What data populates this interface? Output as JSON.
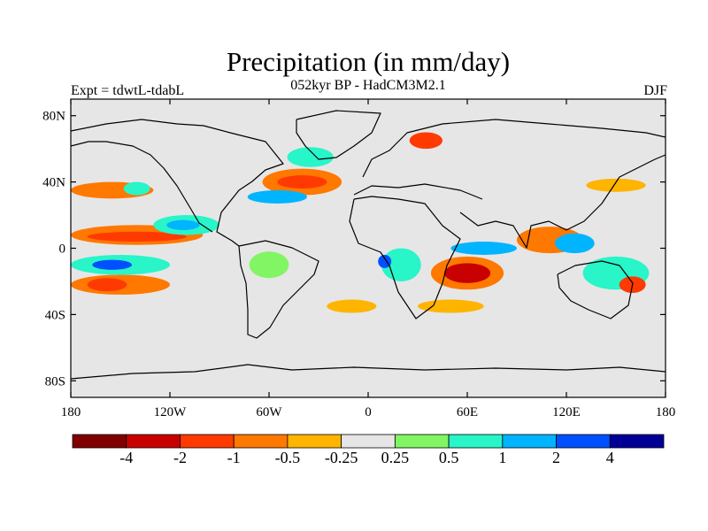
{
  "title": "Precipitation (in mm/day)",
  "subtitle": "052kyr BP - HadCM3M2.1",
  "left_label": "Expt = tdwtL-tdabL",
  "right_label": "DJF",
  "map": {
    "projection": "cylindrical equidistant",
    "lon_range": [
      -180,
      180
    ],
    "lat_range": [
      -90,
      90
    ],
    "lat_ticks": [
      {
        "value": 80,
        "label": "80N"
      },
      {
        "value": 40,
        "label": "40N"
      },
      {
        "value": 0,
        "label": "0"
      },
      {
        "value": -40,
        "label": "40S"
      },
      {
        "value": -80,
        "label": "80S"
      }
    ],
    "lon_ticks": [
      {
        "value": -180,
        "label": "180"
      },
      {
        "value": -120,
        "label": "120W"
      },
      {
        "value": -60,
        "label": "60W"
      },
      {
        "value": 0,
        "label": "0"
      },
      {
        "value": 60,
        "label": "60E"
      },
      {
        "value": 120,
        "label": "120E"
      },
      {
        "value": 180,
        "label": "180"
      }
    ],
    "background_color": "#e6e6e6"
  },
  "colorbar": {
    "colors": [
      "#800000",
      "#c80000",
      "#ff3a00",
      "#ff7800",
      "#ffb400",
      "#e6e6e6",
      "#82f564",
      "#28f5c8",
      "#00b4ff",
      "#0050ff",
      "#000096"
    ],
    "labels": [
      "-4",
      "-2",
      "-1",
      "-0.5",
      "-0.25",
      "0.25",
      "0.5",
      "1",
      "2",
      "4"
    ]
  },
  "anomaly_regions": [
    {
      "lon": 35,
      "lat": 65,
      "rx": 10,
      "ry": 5,
      "color": "#ff3a00"
    },
    {
      "lon": -35,
      "lat": 55,
      "rx": 14,
      "ry": 6,
      "color": "#28f5c8"
    },
    {
      "lon": -40,
      "lat": 40,
      "rx": 24,
      "ry": 8,
      "color": "#ff7800"
    },
    {
      "lon": -40,
      "lat": 40,
      "rx": 15,
      "ry": 4,
      "color": "#ff3a00"
    },
    {
      "lon": -55,
      "lat": 31,
      "rx": 18,
      "ry": 4,
      "color": "#00b4ff"
    },
    {
      "lon": -155,
      "lat": 35,
      "rx": 25,
      "ry": 5,
      "color": "#ff7800"
    },
    {
      "lon": -140,
      "lat": 36,
      "rx": 8,
      "ry": 4,
      "color": "#28f5c8"
    },
    {
      "lon": -140,
      "lat": 8,
      "rx": 40,
      "ry": 6,
      "color": "#ff7800"
    },
    {
      "lon": -140,
      "lat": 7,
      "rx": 30,
      "ry": 3,
      "color": "#ff3a00"
    },
    {
      "lon": -110,
      "lat": 14,
      "rx": 20,
      "ry": 6,
      "color": "#28f5c8"
    },
    {
      "lon": -112,
      "lat": 14,
      "rx": 10,
      "ry": 3,
      "color": "#00b4ff"
    },
    {
      "lon": -150,
      "lat": -10,
      "rx": 30,
      "ry": 6,
      "color": "#28f5c8"
    },
    {
      "lon": -155,
      "lat": -10,
      "rx": 12,
      "ry": 3,
      "color": "#0050ff"
    },
    {
      "lon": -150,
      "lat": -22,
      "rx": 30,
      "ry": 6,
      "color": "#ff7800"
    },
    {
      "lon": -158,
      "lat": -22,
      "rx": 12,
      "ry": 4,
      "color": "#ff3a00"
    },
    {
      "lon": -60,
      "lat": -10,
      "rx": 12,
      "ry": 8,
      "color": "#82f564"
    },
    {
      "lon": 20,
      "lat": -10,
      "rx": 12,
      "ry": 10,
      "color": "#28f5c8"
    },
    {
      "lon": 10,
      "lat": -8,
      "rx": 4,
      "ry": 4,
      "color": "#0050ff"
    },
    {
      "lon": 60,
      "lat": -15,
      "rx": 22,
      "ry": 10,
      "color": "#ff7800"
    },
    {
      "lon": 60,
      "lat": -15,
      "rx": 14,
      "ry": 6,
      "color": "#c80000"
    },
    {
      "lon": 70,
      "lat": 0,
      "rx": 20,
      "ry": 4,
      "color": "#00b4ff"
    },
    {
      "lon": 110,
      "lat": 5,
      "rx": 20,
      "ry": 8,
      "color": "#ff7800"
    },
    {
      "lon": 125,
      "lat": 3,
      "rx": 12,
      "ry": 6,
      "color": "#00b4ff"
    },
    {
      "lon": 150,
      "lat": -15,
      "rx": 20,
      "ry": 10,
      "color": "#28f5c8"
    },
    {
      "lon": 160,
      "lat": -22,
      "rx": 8,
      "ry": 5,
      "color": "#ff3a00"
    },
    {
      "lon": 150,
      "lat": 38,
      "rx": 18,
      "ry": 4,
      "color": "#ffb400"
    },
    {
      "lon": 50,
      "lat": -35,
      "rx": 20,
      "ry": 4,
      "color": "#ffb400"
    },
    {
      "lon": -10,
      "lat": -35,
      "rx": 15,
      "ry": 4,
      "color": "#ffb400"
    }
  ]
}
